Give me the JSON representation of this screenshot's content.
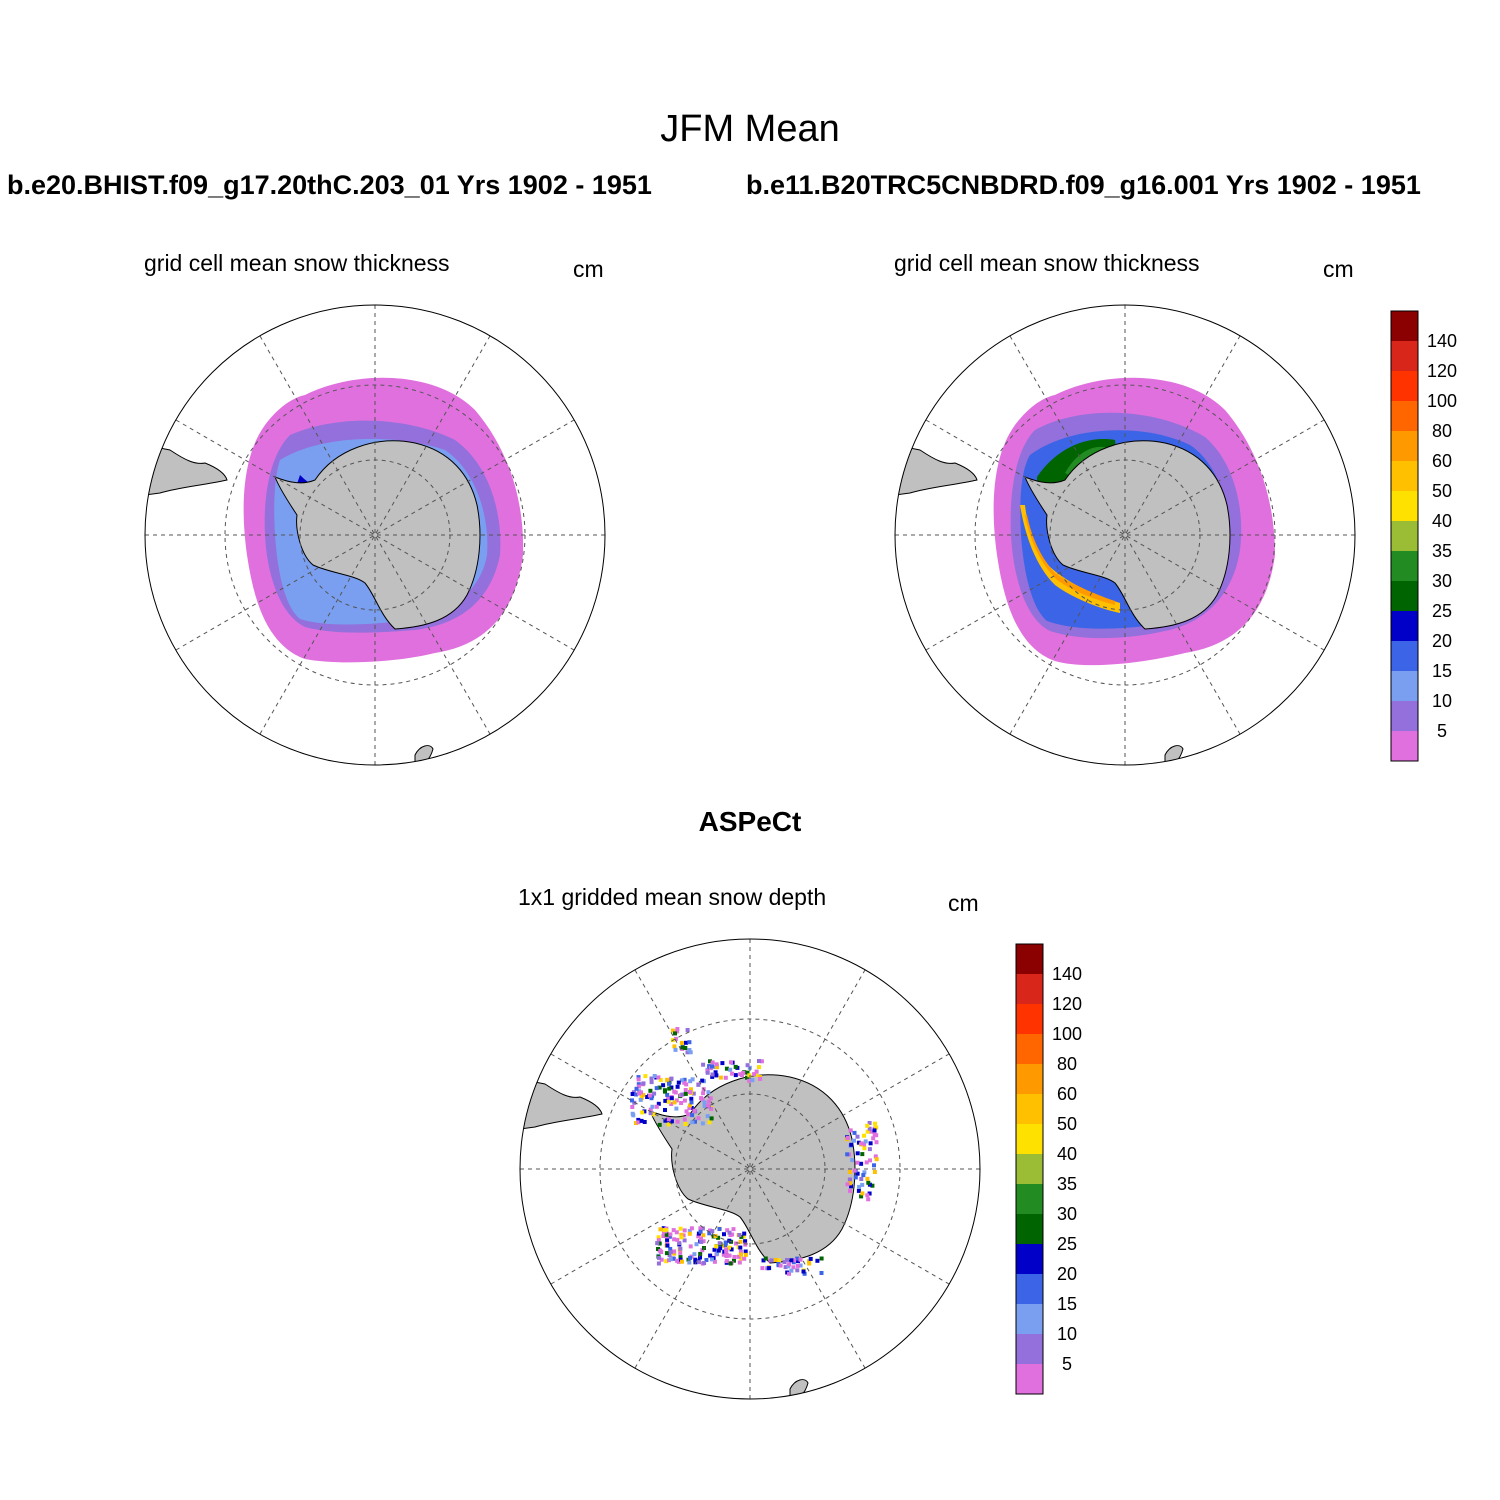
{
  "title": "JFM Mean",
  "panels": [
    {
      "case": "b.e20.BHIST.f09_g17.20thC.203_01  Yrs 1902 - 1951",
      "variable": "grid cell mean snow thickness",
      "units": "cm"
    },
    {
      "case": "b.e11.B20TRC5CNBDRD.f09_g16.001  Yrs 1902 - 1951",
      "variable": "grid cell mean snow thickness",
      "units": "cm"
    },
    {
      "case": "ASPeCt",
      "variable": "1x1 gridded mean snow depth",
      "units": "cm"
    }
  ],
  "colorbar": {
    "labels": [
      "140",
      "120",
      "100",
      "80",
      "60",
      "50",
      "40",
      "35",
      "30",
      "25",
      "20",
      "15",
      "10",
      "5"
    ],
    "colors": [
      "#8b0000",
      "#d8261a",
      "#ff3300",
      "#ff6600",
      "#ff9900",
      "#ffc000",
      "#ffe100",
      "#9abd35",
      "#228b22",
      "#006400",
      "#0000c8",
      "#3c64e6",
      "#7a9ff0",
      "#9370db",
      "#e070dd"
    ]
  },
  "colors": {
    "land": "#c0c0c0",
    "ocean": "#ffffff",
    "grid": "#555555"
  }
}
